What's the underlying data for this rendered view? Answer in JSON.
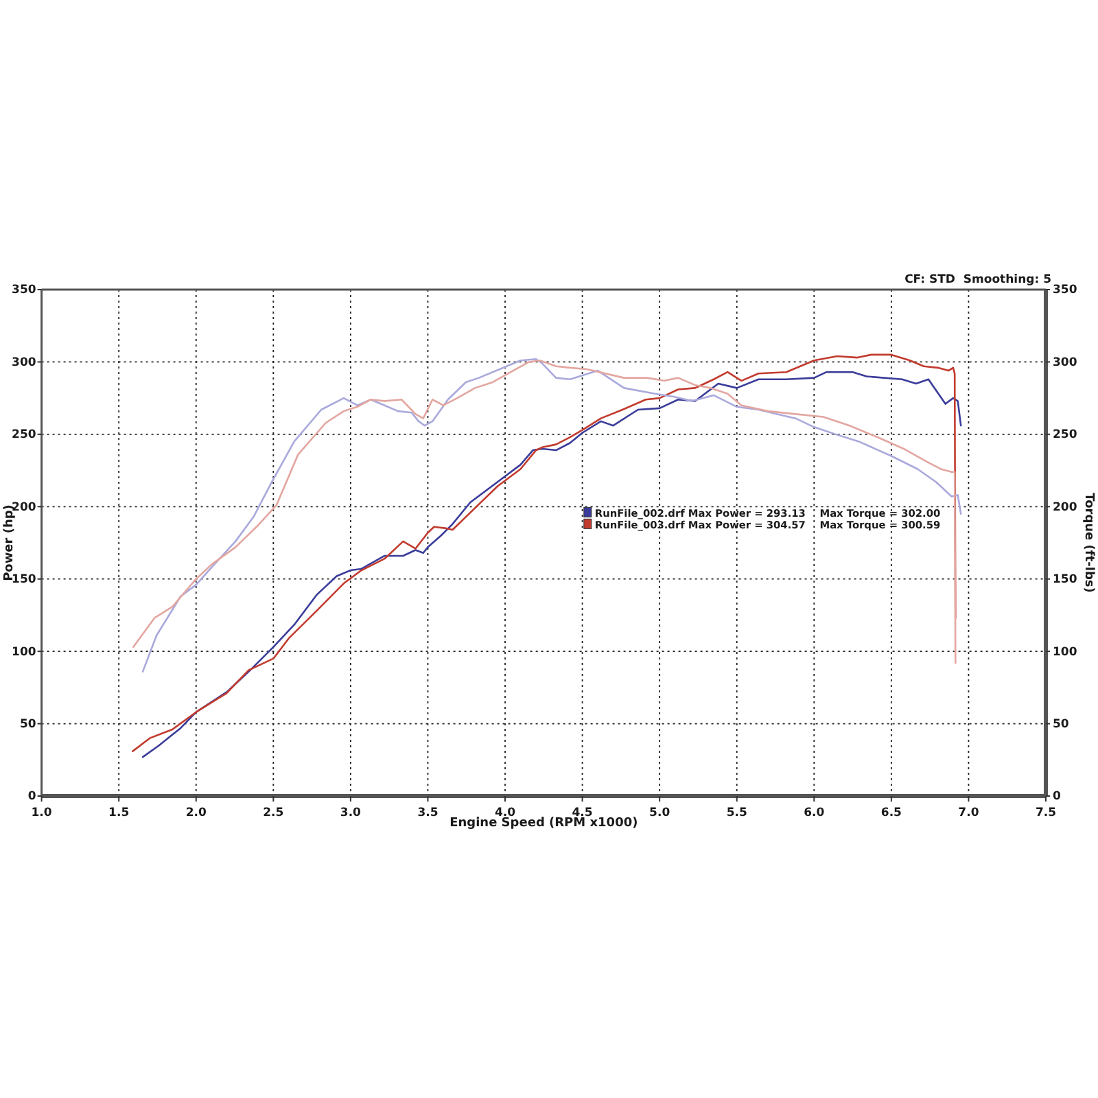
{
  "chart_data": {
    "type": "line",
    "xlabel": "Engine Speed (RPM x1000)",
    "ylabel": "Power (hp)",
    "y2label": "Torque (ft-lbs)",
    "annotations": [
      "CF: STD  Smoothing: 5"
    ],
    "xlim": [
      1.0,
      7.5
    ],
    "xticks": [
      {
        "value": 1,
        "label": "1.0"
      },
      1.5,
      {
        "value": 2,
        "label": "2.0"
      },
      2.5,
      {
        "value": 3,
        "label": "3.0"
      },
      3.5,
      {
        "value": 4,
        "label": "4.0"
      },
      4.5,
      {
        "value": 5,
        "label": "5.0"
      },
      5.5,
      {
        "value": 6,
        "label": "6.0"
      },
      6.5,
      {
        "value": 7,
        "label": "7.0"
      },
      7.5
    ],
    "ylim": [
      0,
      350
    ],
    "yticks": [
      0,
      50,
      100,
      150,
      200,
      250,
      300,
      350
    ],
    "y2lim": [
      0,
      350
    ],
    "y2ticks": [
      0,
      50,
      100,
      150,
      200,
      250,
      300,
      350
    ],
    "grid": true,
    "legend": "center",
    "series": [
      {
        "name": "RunFile_002.drf Max Power = 293.13    Max Torque = 302.00",
        "color": "#3a3c9a",
        "x": [
          1.655,
          1.76,
          1.9,
          2.0,
          2.2,
          2.35,
          2.5,
          2.64,
          2.78,
          2.91,
          3.0,
          3.07,
          3.22,
          3.34,
          3.42,
          3.47,
          3.5,
          3.585,
          3.66,
          3.775,
          3.95,
          4.1,
          4.18,
          4.24,
          4.33,
          4.42,
          4.5,
          4.62,
          4.7,
          4.86,
          5.0,
          5.12,
          5.23,
          5.38,
          5.5,
          5.64,
          5.82,
          6.0,
          6.08,
          6.25,
          6.34,
          6.57,
          6.66,
          6.74,
          6.85,
          6.9,
          6.93,
          6.95
        ],
        "values": [
          27,
          35,
          47,
          58,
          72,
          87,
          103,
          119,
          139,
          152,
          156,
          157,
          166,
          166,
          170,
          168,
          172,
          180,
          188,
          203,
          217,
          229,
          239,
          240,
          239,
          244,
          251,
          259,
          256,
          267,
          268,
          274,
          273,
          285,
          282,
          288,
          288,
          289,
          293,
          293,
          290,
          288,
          285,
          288,
          271,
          275,
          273,
          256
        ]
      },
      {
        "name": "RunFile_003.drf Max Power = 304.57    Max Torque = 300.59",
        "color": "#c23b2e",
        "x": [
          1.59,
          1.7,
          1.846,
          2.0,
          2.196,
          2.34,
          2.5,
          2.6,
          2.78,
          2.956,
          3.07,
          3.22,
          3.34,
          3.42,
          3.5,
          3.54,
          3.62,
          3.66,
          3.805,
          3.95,
          4.1,
          4.2,
          4.24,
          4.33,
          4.42,
          4.5,
          4.62,
          4.76,
          4.91,
          5.0,
          5.12,
          5.23,
          5.35,
          5.44,
          5.53,
          5.64,
          5.82,
          6.0,
          6.15,
          6.28,
          6.37,
          6.5,
          6.62,
          6.71,
          6.8,
          6.87,
          6.9,
          6.91,
          6.915
        ],
        "values": [
          31,
          40,
          46,
          58,
          71,
          87,
          95,
          109,
          128,
          147,
          156,
          164,
          176,
          171,
          182,
          186,
          185,
          184,
          199,
          214,
          226,
          239,
          241,
          243,
          248,
          253,
          261,
          267,
          274,
          275,
          281,
          282,
          288,
          293,
          287,
          292,
          293,
          301,
          304,
          303,
          305,
          305,
          301,
          297,
          296,
          294,
          296,
          292,
          123
        ]
      },
      {
        "color": "#a9a9dc",
        "x": [
          1.655,
          1.744,
          1.9,
          2.0,
          2.1,
          2.255,
          2.372,
          2.49,
          2.635,
          2.81,
          2.956,
          3.044,
          3.13,
          3.22,
          3.307,
          3.395,
          3.44,
          3.48,
          3.53,
          3.63,
          3.746,
          3.83,
          4.01,
          4.1,
          4.2,
          4.24,
          4.33,
          4.42,
          4.6,
          4.77,
          4.97,
          5.09,
          5.21,
          5.35,
          5.5,
          5.64,
          5.88,
          6.0,
          6.14,
          6.29,
          6.5,
          6.67,
          6.79,
          6.89,
          6.93,
          6.95
        ],
        "values": [
          86,
          111,
          138,
          146,
          158,
          176,
          193,
          217,
          245,
          267,
          275,
          270,
          274,
          270,
          266,
          265,
          259,
          256,
          259,
          274,
          286,
          289,
          297,
          301,
          302,
          299,
          289,
          288,
          294,
          282,
          278,
          276,
          273,
          277,
          269,
          267,
          261,
          255,
          250,
          245,
          235,
          226,
          217,
          207,
          208,
          195
        ]
      },
      {
        "color": "#e3a6a0",
        "x": [
          1.594,
          1.73,
          1.848,
          2.0,
          2.1,
          2.255,
          2.4,
          2.52,
          2.66,
          2.84,
          2.956,
          3.044,
          3.13,
          3.22,
          3.33,
          3.42,
          3.47,
          3.53,
          3.6,
          3.69,
          3.805,
          3.92,
          4.07,
          4.155,
          4.225,
          4.33,
          4.42,
          4.53,
          4.77,
          4.92,
          5.03,
          5.12,
          5.23,
          5.33,
          5.44,
          5.53,
          5.7,
          5.88,
          6.06,
          6.23,
          6.41,
          6.58,
          6.73,
          6.82,
          6.89,
          6.91,
          6.915
        ],
        "values": [
          103,
          123,
          131,
          150,
          160,
          172,
          187,
          201,
          236,
          258,
          266,
          269,
          274,
          273,
          274,
          264,
          261,
          274,
          270,
          275,
          282,
          286,
          295,
          300,
          301,
          297,
          296,
          295,
          289,
          289,
          287,
          289,
          284,
          282,
          278,
          270,
          266,
          264,
          262,
          256,
          248,
          240,
          231,
          226,
          224,
          224,
          92
        ]
      }
    ]
  }
}
